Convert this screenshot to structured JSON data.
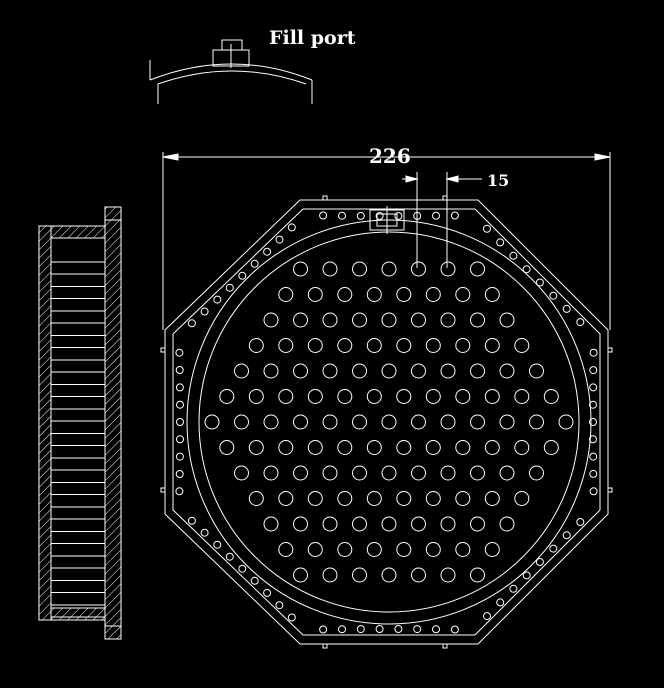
{
  "labels": {
    "fill_port": "Fill port",
    "overall_dimension": "226",
    "hole_pitch": "15"
  },
  "colors": {
    "background": "#000000",
    "lines": "#ffffff"
  }
}
